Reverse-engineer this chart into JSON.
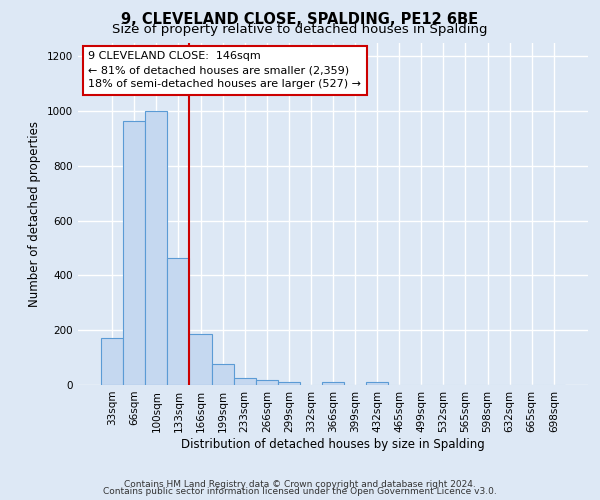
{
  "title": "9, CLEVELAND CLOSE, SPALDING, PE12 6BE",
  "subtitle": "Size of property relative to detached houses in Spalding",
  "xlabel": "Distribution of detached houses by size in Spalding",
  "ylabel": "Number of detached properties",
  "bar_labels": [
    "33sqm",
    "66sqm",
    "100sqm",
    "133sqm",
    "166sqm",
    "199sqm",
    "233sqm",
    "266sqm",
    "299sqm",
    "332sqm",
    "366sqm",
    "399sqm",
    "432sqm",
    "465sqm",
    "499sqm",
    "532sqm",
    "565sqm",
    "598sqm",
    "632sqm",
    "665sqm",
    "698sqm"
  ],
  "bar_values": [
    170,
    965,
    1000,
    465,
    185,
    75,
    25,
    20,
    10,
    0,
    10,
    0,
    10,
    0,
    0,
    0,
    0,
    0,
    0,
    0,
    0
  ],
  "bar_color": "#c5d8f0",
  "bar_edge_color": "#5b9bd5",
  "ylim": [
    0,
    1250
  ],
  "yticks": [
    0,
    200,
    400,
    600,
    800,
    1000,
    1200
  ],
  "vline_x": 3.5,
  "vline_color": "#cc0000",
  "annotation_title": "9 CLEVELAND CLOSE:  146sqm",
  "annotation_line1": "← 81% of detached houses are smaller (2,359)",
  "annotation_line2": "18% of semi-detached houses are larger (527) →",
  "annotation_box_color": "#ffffff",
  "annotation_box_edge": "#cc0000",
  "footnote1": "Contains HM Land Registry data © Crown copyright and database right 2024.",
  "footnote2": "Contains public sector information licensed under the Open Government Licence v3.0.",
  "background_color": "#dde8f5",
  "plot_bg_color": "#dde8f5",
  "grid_color": "#ffffff",
  "title_fontsize": 10.5,
  "subtitle_fontsize": 9.5,
  "label_fontsize": 8.5,
  "tick_fontsize": 7.5,
  "footnote_fontsize": 6.5
}
